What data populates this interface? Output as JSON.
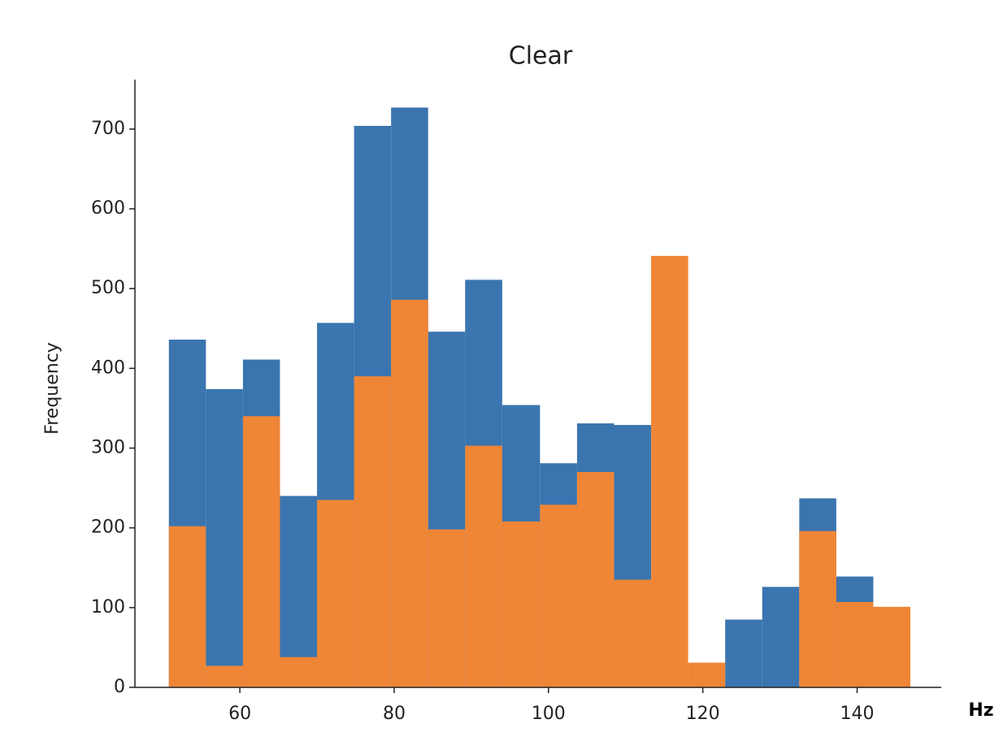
{
  "chart_data": {
    "type": "histogram",
    "title": "Clear",
    "ylabel": "Frequency",
    "xlabel": "Hz",
    "bins": [
      50.8,
      55.6,
      60.4,
      65.2,
      70.0,
      74.8,
      79.6,
      84.4,
      89.2,
      94.0,
      98.9,
      103.7,
      108.5,
      113.3,
      118.1,
      122.9,
      127.7,
      132.5,
      137.3,
      142.1,
      146.9
    ],
    "series": [
      {
        "color": "#3b75af",
        "values": [
          436,
          374,
          411,
          240,
          457,
          704,
          727,
          446,
          511,
          354,
          281,
          331,
          329,
          0,
          0,
          85,
          126,
          237,
          139,
          0
        ]
      },
      {
        "color": "#ef8636",
        "values": [
          202,
          27,
          340,
          38,
          235,
          390,
          486,
          198,
          303,
          208,
          229,
          270,
          135,
          541,
          31,
          0,
          0,
          196,
          107,
          101
        ]
      }
    ],
    "xlim": [
      46.4,
      150.9
    ],
    "ylim": [
      0,
      762
    ],
    "xticks": [
      60,
      80,
      100,
      120,
      140
    ],
    "yticks": [
      0,
      100,
      200,
      300,
      400,
      500,
      600,
      700
    ]
  }
}
